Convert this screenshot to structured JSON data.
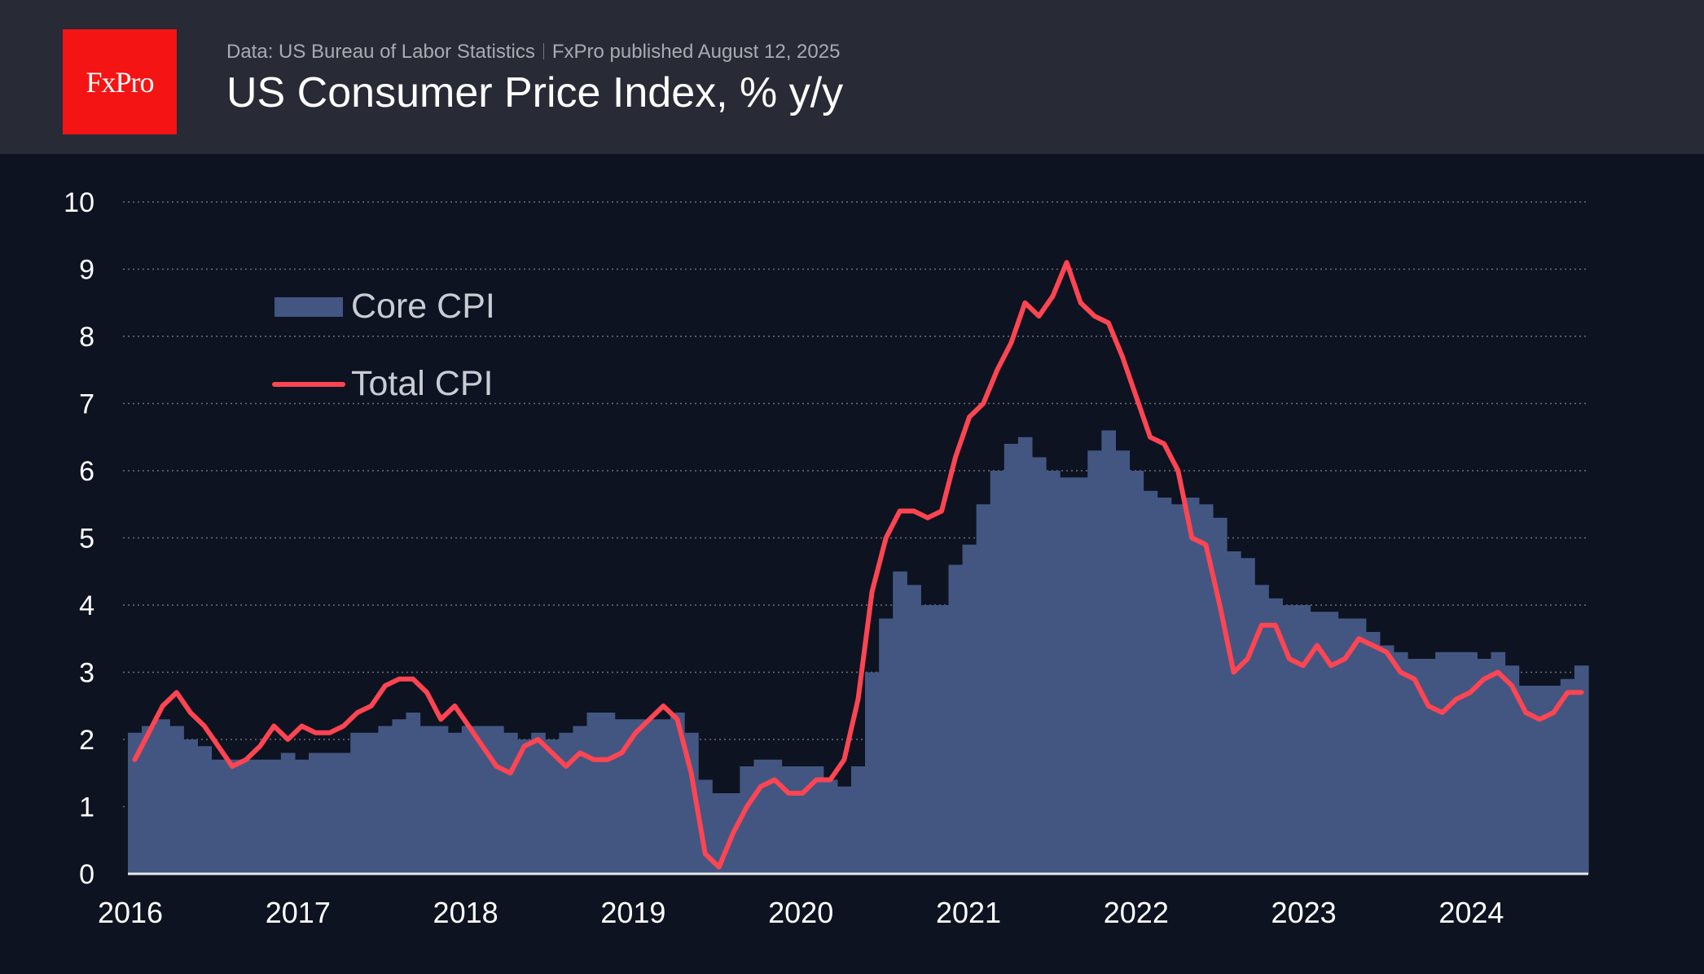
{
  "header": {
    "logo_text": "FxPro",
    "source": "Data: US Bureau of Labor Statistics",
    "publisher": "FxPro published August 12, 2025",
    "title": "US Consumer Price Index, % y/y"
  },
  "colors": {
    "background": "#0d1320",
    "header": "#282a36",
    "logo": "#f41414",
    "core": "#435682",
    "total": "#ff4452",
    "grid": "#6b6f7a"
  },
  "chart_data": {
    "type": "bar+line",
    "title": "US Consumer Price Index, % y/y",
    "xlabel": "",
    "ylabel": "",
    "ylim": [
      0,
      10
    ],
    "y_ticks": [
      "0",
      "1",
      "2",
      "3",
      "4",
      "5",
      "6",
      "7",
      "8",
      "9",
      "10"
    ],
    "x_tick_labels": [
      "2016",
      "2017",
      "2018",
      "2019",
      "2020",
      "2021",
      "2022",
      "2023",
      "2024"
    ],
    "grid": "horizontal dotted",
    "legend_placement": "top-left",
    "x_start": "2016-11",
    "x_end": "2025-07",
    "series": [
      {
        "name": "Core CPI",
        "type": "step-area",
        "color": "#435682",
        "values": [
          2.1,
          2.2,
          2.3,
          2.2,
          2.0,
          1.9,
          1.7,
          1.7,
          1.7,
          1.7,
          1.7,
          1.8,
          1.7,
          1.8,
          1.8,
          1.8,
          2.1,
          2.1,
          2.2,
          2.3,
          2.4,
          2.2,
          2.2,
          2.1,
          2.2,
          2.2,
          2.2,
          2.1,
          2.0,
          2.1,
          2.0,
          2.1,
          2.2,
          2.4,
          2.4,
          2.3,
          2.3,
          2.3,
          2.3,
          2.4,
          2.1,
          1.4,
          1.2,
          1.2,
          1.6,
          1.7,
          1.7,
          1.6,
          1.6,
          1.6,
          1.4,
          1.3,
          1.6,
          3.0,
          3.8,
          4.5,
          4.3,
          4.0,
          4.0,
          4.6,
          4.9,
          5.5,
          6.0,
          6.4,
          6.5,
          6.2,
          6.0,
          5.9,
          5.9,
          6.3,
          6.6,
          6.3,
          6.0,
          5.7,
          5.6,
          5.5,
          5.6,
          5.5,
          5.3,
          4.8,
          4.7,
          4.3,
          4.1,
          4.0,
          4.0,
          3.9,
          3.9,
          3.8,
          3.8,
          3.6,
          3.4,
          3.3,
          3.2,
          3.2,
          3.3,
          3.3,
          3.3,
          3.2,
          3.3,
          3.1,
          2.8,
          2.8,
          2.8,
          2.9,
          3.1
        ]
      },
      {
        "name": "Total CPI",
        "type": "line",
        "color": "#ff4452",
        "values": [
          1.7,
          2.1,
          2.5,
          2.7,
          2.4,
          2.2,
          1.9,
          1.6,
          1.7,
          1.9,
          2.2,
          2.0,
          2.2,
          2.1,
          2.1,
          2.2,
          2.4,
          2.5,
          2.8,
          2.9,
          2.9,
          2.7,
          2.3,
          2.5,
          2.2,
          1.9,
          1.6,
          1.5,
          1.9,
          2.0,
          1.8,
          1.6,
          1.8,
          1.7,
          1.7,
          1.8,
          2.1,
          2.3,
          2.5,
          2.3,
          1.5,
          0.3,
          0.1,
          0.6,
          1.0,
          1.3,
          1.4,
          1.2,
          1.2,
          1.4,
          1.4,
          1.7,
          2.6,
          4.2,
          5.0,
          5.4,
          5.4,
          5.3,
          5.4,
          6.2,
          6.8,
          7.0,
          7.5,
          7.9,
          8.5,
          8.3,
          8.6,
          9.1,
          8.5,
          8.3,
          8.2,
          7.7,
          7.1,
          6.5,
          6.4,
          6.0,
          5.0,
          4.9,
          4.0,
          3.0,
          3.2,
          3.7,
          3.7,
          3.2,
          3.1,
          3.4,
          3.1,
          3.2,
          3.5,
          3.4,
          3.3,
          3.0,
          2.9,
          2.5,
          2.4,
          2.6,
          2.7,
          2.9,
          3.0,
          2.8,
          2.4,
          2.3,
          2.4,
          2.7,
          2.7
        ]
      }
    ]
  }
}
